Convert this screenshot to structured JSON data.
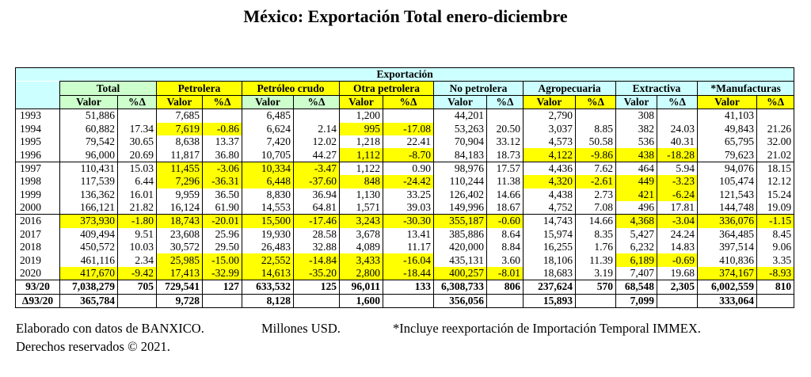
{
  "title": "México: Exportación Total enero-diciembre",
  "table": {
    "super_header": "Exportación",
    "groups": [
      {
        "label": "Total",
        "head_color": "#ccffcc",
        "sub_color": "#ccffcc"
      },
      {
        "label": "Petrolera",
        "head_color": "#ffff00",
        "sub_color": "#ffff00"
      },
      {
        "label": "Petróleo crudo",
        "head_color": "#ffff00",
        "sub_color": "#ccffcc"
      },
      {
        "label": "Otra petrolera",
        "head_color": "#ffff00",
        "sub_color": "#ffff00"
      },
      {
        "label": "No petrolera",
        "head_color": "#ccffff",
        "sub_color": "#ccffff"
      },
      {
        "label": "Agropecuaria",
        "head_color": "#ccffff",
        "sub_color": "#ffff00"
      },
      {
        "label": "Extractiva",
        "head_color": "#ccffff",
        "sub_color": "#ccffff"
      },
      {
        "label": "*Manufacturas",
        "head_color": "#ccffff",
        "sub_color": "#ffff00"
      }
    ],
    "sub_labels": {
      "value": "Valor",
      "pct": "%Δ"
    },
    "highlight_color": "#ffff00",
    "rows": [
      {
        "year": "1993",
        "cells": [
          "51,886",
          "",
          "7,685",
          "",
          "6,485",
          "",
          "1,200",
          "",
          "44,201",
          "",
          "2,790",
          "",
          "308",
          "",
          "41,103",
          ""
        ]
      },
      {
        "year": "1994",
        "cells": [
          "60,882",
          "17.34",
          "7,619",
          "-0.86",
          "6,624",
          "2.14",
          "995",
          "-17.08",
          "53,263",
          "20.50",
          "3,037",
          "8.85",
          "382",
          "24.03",
          "49,843",
          "21.26"
        ]
      },
      {
        "year": "1995",
        "cells": [
          "79,542",
          "30.65",
          "8,638",
          "13.37",
          "7,420",
          "12.02",
          "1,218",
          "22.41",
          "70,904",
          "33.12",
          "4,573",
          "50.58",
          "536",
          "40.31",
          "65,795",
          "32.00"
        ]
      },
      {
        "year": "1996",
        "sep": true,
        "cells": [
          "96,000",
          "20.69",
          "11,817",
          "36.80",
          "10,705",
          "44.27",
          "1,112",
          "-8.70",
          "84,183",
          "18.73",
          "4,122",
          "-9.86",
          "438",
          "-18.28",
          "79,623",
          "21.02"
        ]
      },
      {
        "year": "1997",
        "cells": [
          "110,431",
          "15.03",
          "11,455",
          "-3.06",
          "10,334",
          "-3.47",
          "1,122",
          "0.90",
          "98,976",
          "17.57",
          "4,436",
          "7.62",
          "464",
          "5.94",
          "94,076",
          "18.15"
        ]
      },
      {
        "year": "1998",
        "cells": [
          "117,539",
          "6.44",
          "7,296",
          "-36.31",
          "6,448",
          "-37.60",
          "848",
          "-24.42",
          "110,244",
          "11.38",
          "4,320",
          "-2.61",
          "449",
          "-3.23",
          "105,474",
          "12.12"
        ]
      },
      {
        "year": "1999",
        "cells": [
          "136,362",
          "16.01",
          "9,959",
          "36.50",
          "8,830",
          "36.94",
          "1,130",
          "33.25",
          "126,402",
          "14.66",
          "4,438",
          "2.73",
          "421",
          "-6.24",
          "121,543",
          "15.24"
        ]
      },
      {
        "year": "2000",
        "sep": true,
        "cells": [
          "166,121",
          "21.82",
          "16,124",
          "61.90",
          "14,553",
          "64.81",
          "1,571",
          "39.03",
          "149,996",
          "18.67",
          "4,752",
          "7.08",
          "496",
          "17.81",
          "144,748",
          "19.09"
        ]
      },
      {
        "year": "2016",
        "cells": [
          "373,930",
          "-1.80",
          "18,743",
          "-20.01",
          "15,500",
          "-17.46",
          "3,243",
          "-30.30",
          "355,187",
          "-0.60",
          "14,743",
          "14.66",
          "4,368",
          "-3.04",
          "336,076",
          "-1.15"
        ]
      },
      {
        "year": "2017",
        "cells": [
          "409,494",
          "9.51",
          "23,608",
          "25.96",
          "19,930",
          "28.58",
          "3,678",
          "13.41",
          "385,886",
          "8.64",
          "15,974",
          "8.35",
          "5,427",
          "24.24",
          "364,485",
          "8.45"
        ]
      },
      {
        "year": "2018",
        "cells": [
          "450,572",
          "10.03",
          "30,572",
          "29.50",
          "26,483",
          "32.88",
          "4,089",
          "11.17",
          "420,000",
          "8.84",
          "16,255",
          "1.76",
          "6,232",
          "14.83",
          "397,514",
          "9.06"
        ]
      },
      {
        "year": "2019",
        "cells": [
          "461,116",
          "2.34",
          "25,985",
          "-15.00",
          "22,552",
          "-14.84",
          "3,433",
          "-16.04",
          "435,131",
          "3.60",
          "18,106",
          "11.39",
          "6,189",
          "-0.69",
          "410,836",
          "3.35"
        ]
      },
      {
        "year": "2020",
        "sep": true,
        "cells": [
          "417,670",
          "-9.42",
          "17,413",
          "-32.99",
          "14,613",
          "-35.20",
          "2,800",
          "-18.44",
          "400,257",
          "-8.01",
          "18,683",
          "3.19",
          "7,407",
          "19.68",
          "374,167",
          "-8.93"
        ]
      },
      {
        "year": "93/20",
        "bold": true,
        "cells": [
          "7,038,279",
          "705",
          "729,541",
          "127",
          "633,532",
          "125",
          "96,011",
          "133",
          "6,308,733",
          "806",
          "237,624",
          "570",
          "68,548",
          "2,305",
          "6,002,559",
          "810"
        ]
      },
      {
        "year": "Δ93/20",
        "bold": true,
        "cells": [
          "365,784",
          "",
          "9,728",
          "",
          "8,128",
          "",
          "1,600",
          "",
          "356,056",
          "",
          "15,893",
          "",
          "7,099",
          "",
          "333,064",
          ""
        ]
      }
    ]
  },
  "footer": {
    "source": "Elaborado con datos de BANXICO.",
    "units": "Millones USD.",
    "note": "*Incluye reexportación de Importación Temporal IMMEX.",
    "copyright": "Derechos reservados © 2021."
  }
}
